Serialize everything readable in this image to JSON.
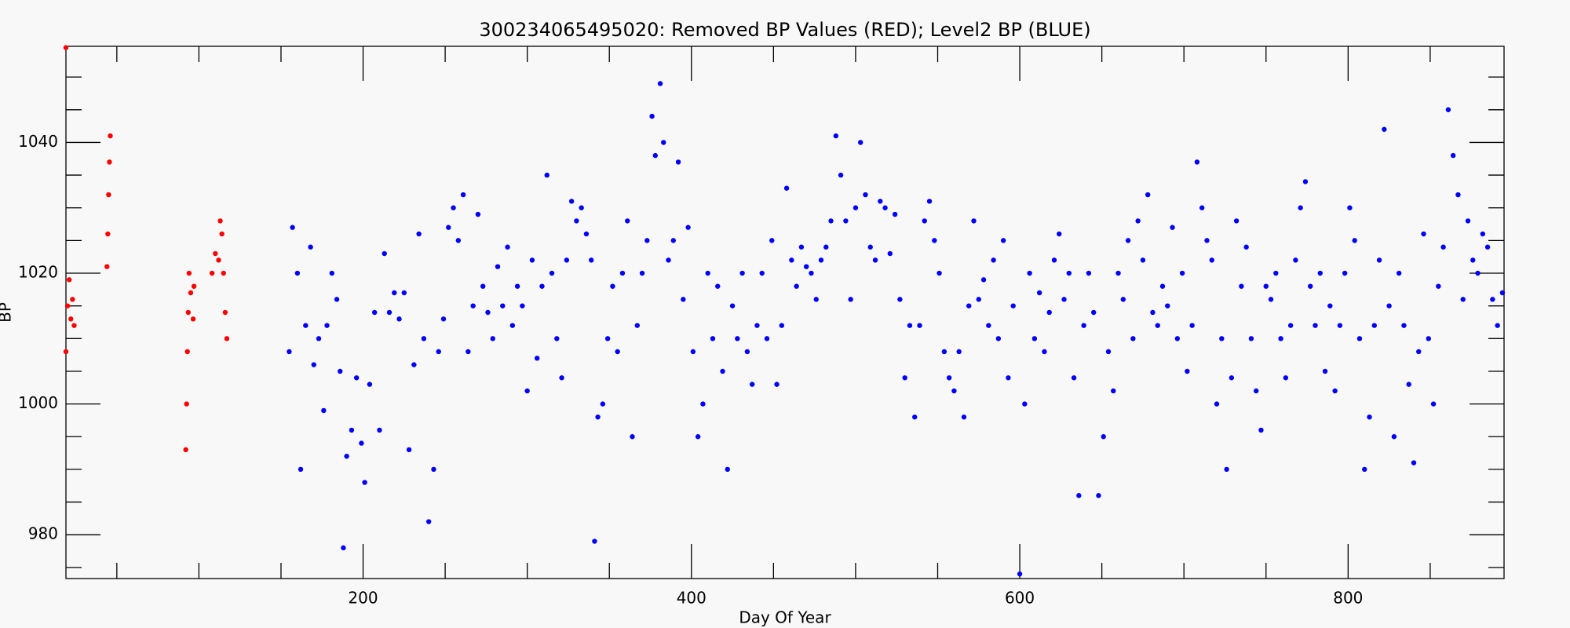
{
  "chart_data": {
    "type": "scatter",
    "title": "300234065495020: Removed BP Values (RED); Level2 BP (BLUE)",
    "x_label": "Day Of Year",
    "y_label": "BP",
    "xlim": [
      19,
      895
    ],
    "ylim": [
      973.3,
      1054.7
    ],
    "xticks": [
      200,
      400,
      600,
      800
    ],
    "x_minor_ticks": [
      50,
      100,
      150,
      250,
      300,
      350,
      450,
      500,
      550,
      650,
      700,
      750,
      850
    ],
    "yticks": [
      980,
      1000,
      1020,
      1040
    ],
    "y_minor_ticks": [
      975,
      985,
      990,
      995,
      1005,
      1010,
      1015,
      1025,
      1030,
      1035,
      1045,
      1050
    ],
    "series": [
      {
        "color": "#ff0000",
        "x": [
          19,
          19,
          20,
          21,
          22,
          23,
          24,
          44,
          44.5,
          45,
          45.5,
          46,
          92,
          92.5,
          93,
          93.5,
          94,
          95,
          96.5,
          97,
          108,
          110,
          112,
          113,
          114,
          115,
          116,
          117
        ],
        "values": [
          1054.5,
          1008,
          1015,
          1019,
          1013,
          1016,
          1012,
          1021,
          1026,
          1032,
          1037,
          1041,
          993,
          1000,
          1008,
          1014,
          1020,
          1017,
          1013,
          1018,
          1020,
          1023,
          1022,
          1028,
          1026,
          1020,
          1014,
          1010
        ]
      },
      {
        "color": "#0000ff",
        "x": [
          155,
          157,
          160,
          162,
          165,
          168,
          170,
          173,
          176,
          178,
          181,
          184,
          186,
          188,
          190,
          193,
          196,
          199,
          201,
          204,
          207,
          210,
          213,
          216,
          219,
          222,
          225,
          228,
          231,
          234,
          237,
          240,
          243,
          246,
          249,
          252,
          255,
          258,
          261,
          264,
          267,
          270,
          273,
          276,
          279,
          282,
          285,
          288,
          291,
          294,
          297,
          300,
          303,
          306,
          309,
          312,
          315,
          318,
          321,
          324,
          327,
          330,
          333,
          336,
          339,
          341,
          343,
          346,
          349,
          352,
          355,
          358,
          361,
          364,
          367,
          370,
          373,
          376,
          378,
          381,
          383,
          386,
          389,
          392,
          395,
          398,
          401,
          404,
          407,
          410,
          413,
          416,
          419,
          422,
          425,
          428,
          431,
          434,
          437,
          440,
          443,
          446,
          449,
          452,
          455,
          458,
          461,
          464,
          467,
          470,
          473,
          476,
          479,
          482,
          485,
          488,
          491,
          494,
          497,
          500,
          503,
          506,
          509,
          512,
          515,
          518,
          521,
          524,
          527,
          530,
          533,
          536,
          539,
          542,
          545,
          548,
          551,
          554,
          557,
          560,
          563,
          566,
          569,
          572,
          575,
          578,
          581,
          584,
          587,
          590,
          593,
          596,
          600,
          603,
          606,
          609,
          612,
          615,
          618,
          621,
          624,
          627,
          630,
          633,
          636,
          639,
          642,
          645,
          648,
          651,
          654,
          657,
          660,
          663,
          666,
          669,
          672,
          675,
          678,
          681,
          684,
          687,
          690,
          693,
          696,
          699,
          702,
          705,
          708,
          711,
          714,
          717,
          720,
          723,
          726,
          729,
          732,
          735,
          738,
          741,
          744,
          747,
          750,
          753,
          756,
          759,
          762,
          765,
          768,
          771,
          774,
          777,
          780,
          783,
          786,
          789,
          792,
          795,
          798,
          801,
          804,
          807,
          810,
          813,
          816,
          819,
          822,
          825,
          828,
          831,
          834,
          837,
          840,
          843,
          846,
          849,
          852,
          855,
          858,
          861,
          864,
          867,
          870,
          873,
          876,
          879,
          882,
          885,
          888,
          891,
          894
        ],
        "values": [
          1008,
          1027,
          1020,
          990,
          1012,
          1024,
          1006,
          1010,
          999,
          1012,
          1020,
          1016,
          1005,
          978,
          992,
          996,
          1004,
          994,
          988,
          1003,
          1014,
          996,
          1023,
          1014,
          1017,
          1013,
          1017,
          993,
          1006,
          1026,
          1010,
          982,
          990,
          1008,
          1013,
          1027,
          1030,
          1025,
          1032,
          1008,
          1015,
          1029,
          1018,
          1014,
          1010,
          1021,
          1015,
          1024,
          1012,
          1018,
          1015,
          1002,
          1022,
          1007,
          1018,
          1035,
          1020,
          1010,
          1004,
          1022,
          1031,
          1028,
          1030,
          1026,
          1022,
          979,
          998,
          1000,
          1010,
          1018,
          1008,
          1020,
          1028,
          995,
          1012,
          1020,
          1025,
          1044,
          1038,
          1049,
          1040,
          1022,
          1025,
          1037,
          1016,
          1027,
          1008,
          995,
          1000,
          1020,
          1010,
          1018,
          1005,
          990,
          1015,
          1010,
          1020,
          1008,
          1003,
          1012,
          1020,
          1010,
          1025,
          1003,
          1012,
          1033,
          1022,
          1018,
          1024,
          1021,
          1020,
          1016,
          1022,
          1024,
          1028,
          1041,
          1035,
          1028,
          1016,
          1030,
          1040,
          1032,
          1024,
          1022,
          1031,
          1030,
          1023,
          1029,
          1016,
          1004,
          1012,
          998,
          1012,
          1028,
          1031,
          1025,
          1020,
          1008,
          1004,
          1002,
          1008,
          998,
          1015,
          1028,
          1016,
          1019,
          1012,
          1022,
          1010,
          1025,
          1004,
          1015,
          974,
          1000,
          1020,
          1010,
          1017,
          1008,
          1014,
          1022,
          1026,
          1016,
          1020,
          1004,
          986,
          1012,
          1020,
          1014,
          986,
          995,
          1008,
          1002,
          1020,
          1016,
          1025,
          1010,
          1028,
          1022,
          1032,
          1014,
          1012,
          1018,
          1015,
          1027,
          1010,
          1020,
          1005,
          1012,
          1037,
          1030,
          1025,
          1022,
          1000,
          1010,
          990,
          1004,
          1028,
          1018,
          1024,
          1010,
          1002,
          996,
          1018,
          1016,
          1020,
          1010,
          1004,
          1012,
          1022,
          1030,
          1034,
          1018,
          1012,
          1020,
          1005,
          1015,
          1002,
          1012,
          1020,
          1030,
          1025,
          1010,
          990,
          998,
          1012,
          1022,
          1042,
          1015,
          995,
          1020,
          1012,
          1003,
          991,
          1008,
          1026,
          1010,
          1000,
          1018,
          1024,
          1045,
          1038,
          1032,
          1016,
          1028,
          1022,
          1020,
          1026,
          1024,
          1016,
          1012,
          1017
        ]
      }
    ]
  }
}
